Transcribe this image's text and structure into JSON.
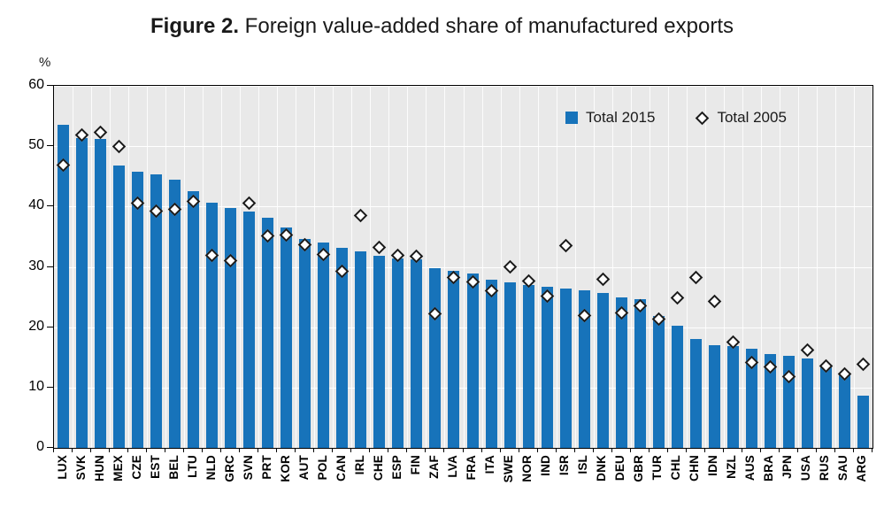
{
  "figure": {
    "title_prefix": "Figure 2.",
    "title_rest": " Foreign value-added share of manufactured exports",
    "y_unit_label": "%"
  },
  "legend": {
    "item1_label": "Total 2015",
    "item2_label": "Total 2005"
  },
  "colors": {
    "bar": "#1773ba",
    "plot_background": "#e9e9e9",
    "gridline": "#ffffff",
    "diamond_fill": "#ffffff",
    "diamond_stroke": "#1a1a1a",
    "axis": "#000000",
    "text": "#1a1a1a"
  },
  "chart_data": {
    "type": "bar",
    "title": "Figure 2. Foreign value-added share of manufactured exports",
    "xlabel": "",
    "ylabel": "%",
    "ylim": [
      0,
      60
    ],
    "yticks": [
      0,
      10,
      20,
      30,
      40,
      50,
      60
    ],
    "grid": true,
    "legend_position": "top-right-inside",
    "categories": [
      "LUX",
      "SVK",
      "HUN",
      "MEX",
      "CZE",
      "EST",
      "BEL",
      "LTU",
      "NLD",
      "GRC",
      "SVN",
      "PRT",
      "KOR",
      "AUT",
      "POL",
      "CAN",
      "IRL",
      "CHE",
      "ESP",
      "FIN",
      "ZAF",
      "LVA",
      "FRA",
      "ITA",
      "SWE",
      "NOR",
      "IND",
      "ISR",
      "ISL",
      "DNK",
      "DEU",
      "GBR",
      "TUR",
      "CHL",
      "CHN",
      "IDN",
      "NZL",
      "AUS",
      "BRA",
      "JPN",
      "USA",
      "RUS",
      "SAU",
      "ARG"
    ],
    "series": [
      {
        "name": "Total 2015",
        "marker": "bar",
        "values": [
          53.5,
          51.3,
          51.2,
          46.8,
          45.7,
          45.3,
          44.5,
          42.6,
          40.6,
          39.8,
          39.2,
          38.1,
          36.5,
          34.6,
          34.0,
          33.2,
          32.6,
          31.9,
          31.4,
          31.2,
          29.8,
          29.4,
          28.9,
          27.9,
          27.5,
          27.0,
          26.7,
          26.4,
          26.1,
          25.7,
          24.9,
          24.6,
          21.8,
          20.3,
          18.1,
          17.0,
          16.9,
          16.4,
          15.6,
          15.3,
          14.8,
          13.7,
          12.4,
          8.7
        ]
      },
      {
        "name": "Total 2005",
        "marker": "diamond",
        "values": [
          46.8,
          51.8,
          52.3,
          49.9,
          40.6,
          39.2,
          39.5,
          40.9,
          31.9,
          31.0,
          40.5,
          35.1,
          35.3,
          33.6,
          32.0,
          29.2,
          38.5,
          33.3,
          31.9,
          31.8,
          22.2,
          28.2,
          27.5,
          26.0,
          30.0,
          27.7,
          25.2,
          33.5,
          22.0,
          27.9,
          22.3,
          23.5,
          21.3,
          24.8,
          28.3,
          24.3,
          17.6,
          14.1,
          13.4,
          11.8,
          16.2,
          13.5,
          12.3,
          13.8
        ]
      }
    ]
  }
}
